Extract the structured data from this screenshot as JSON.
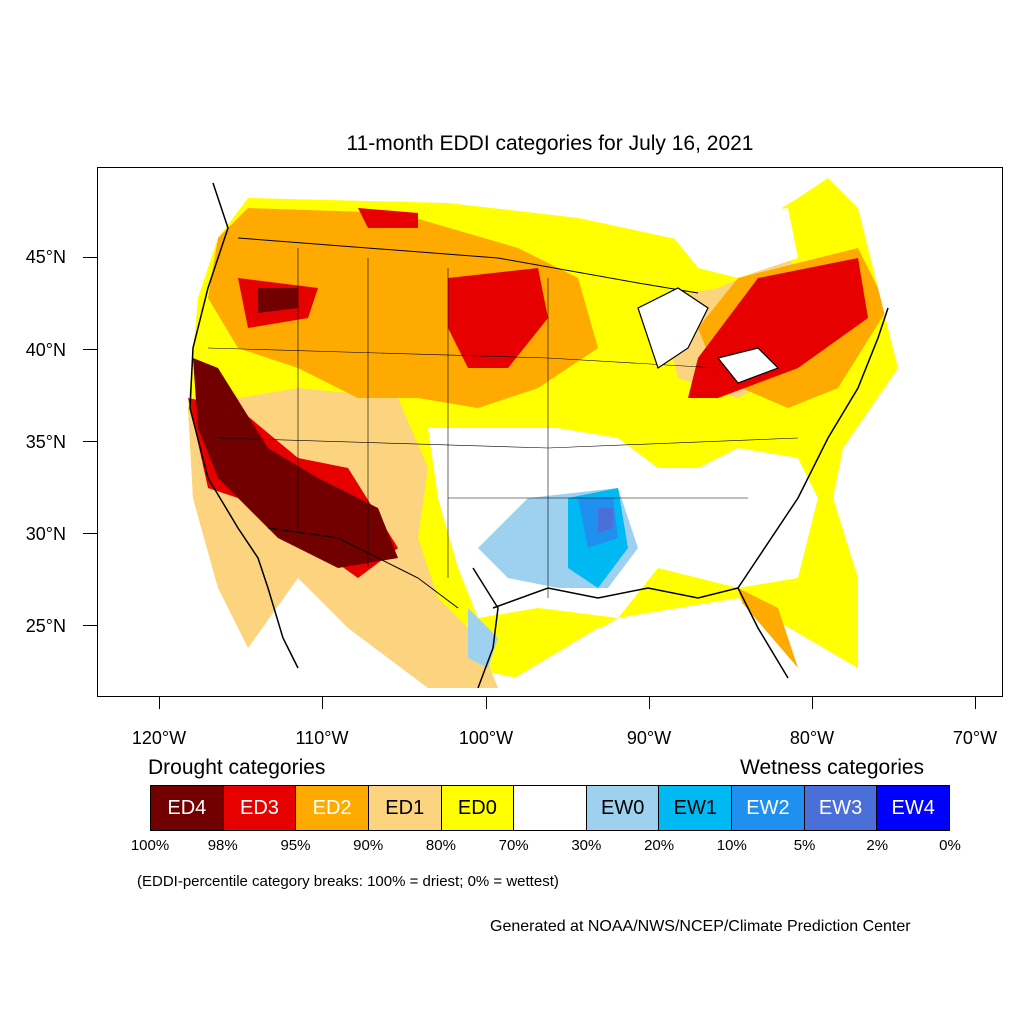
{
  "title": "11-month EDDI categories for July 16, 2021",
  "lat_labels": [
    "45°N",
    "40°N",
    "35°N",
    "30°N",
    "25°N"
  ],
  "lon_labels": [
    "120°W",
    "110°W",
    "100°W",
    "90°W",
    "80°W",
    "70°W"
  ],
  "legend": {
    "drought_heading": "Drought categories",
    "wetness_heading": "Wetness categories",
    "categories": [
      {
        "label": "ED4",
        "color": "#730000",
        "text_color": "#ffffff"
      },
      {
        "label": "ED3",
        "color": "#e60000",
        "text_color": "#ffffff"
      },
      {
        "label": "ED2",
        "color": "#ffaa00",
        "text_color": "#ffffff"
      },
      {
        "label": "ED1",
        "color": "#fcd37f",
        "text_color": "#000000"
      },
      {
        "label": "ED0",
        "color": "#ffff00",
        "text_color": "#000000"
      },
      {
        "label": "",
        "color": "#ffffff",
        "text_color": "#000000"
      },
      {
        "label": "EW0",
        "color": "#9ed0f0",
        "text_color": "#000000"
      },
      {
        "label": "EW1",
        "color": "#00b9f2",
        "text_color": "#000000"
      },
      {
        "label": "EW2",
        "color": "#1f8ff0",
        "text_color": "#ffffff"
      },
      {
        "label": "EW3",
        "color": "#4a6fd9",
        "text_color": "#ffffff"
      },
      {
        "label": "EW4",
        "color": "#0000ff",
        "text_color": "#ffffff"
      }
    ],
    "percentiles": [
      "100%",
      "98%",
      "95%",
      "90%",
      "80%",
      "70%",
      "30%",
      "20%",
      "10%",
      "5%",
      "2%",
      "0%"
    ]
  },
  "note": "(EDDI-percentile category breaks: 100% = driest; 0% = wettest)",
  "credit": "Generated at NOAA/NWS/NCEP/Climate Prediction Center"
}
